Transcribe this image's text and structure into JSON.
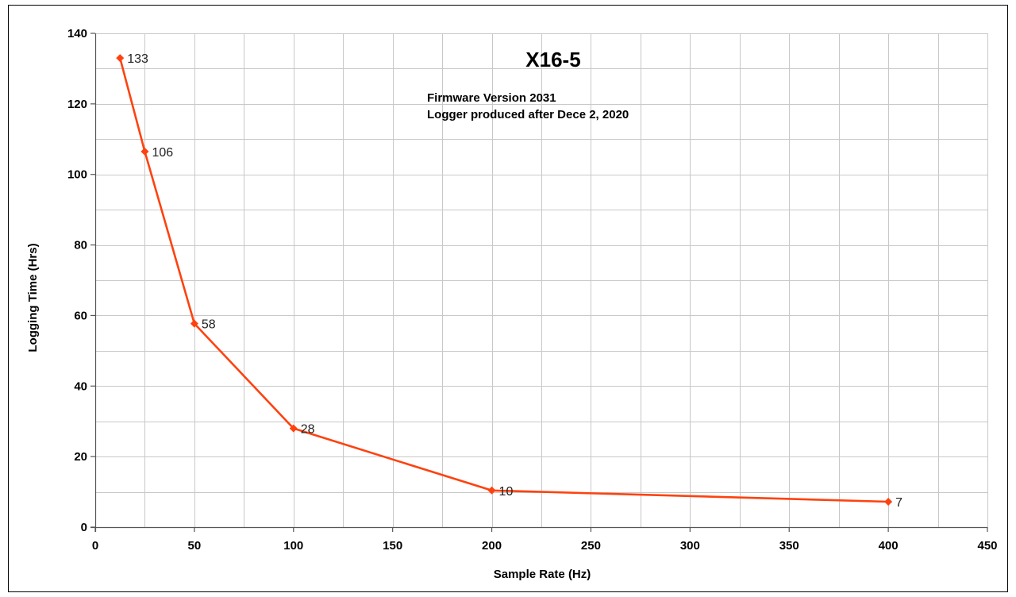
{
  "chart_data": {
    "type": "line",
    "title": "X16-5",
    "annotations": [
      "Firmware Version 2031",
      "Logger produced after Dece 2, 2020"
    ],
    "xlabel": "Sample Rate (Hz)",
    "ylabel": "Logging Time (Hrs)",
    "xlim": [
      0,
      450
    ],
    "ylim": [
      0,
      140
    ],
    "x_ticks": [
      0,
      50,
      100,
      150,
      200,
      250,
      300,
      350,
      400,
      450
    ],
    "y_ticks": [
      0,
      20,
      40,
      60,
      80,
      100,
      120,
      140
    ],
    "x_minor_step": 25,
    "y_minor_step": 10,
    "grid": true,
    "series": [
      {
        "x": [
          12.5,
          25,
          50,
          100,
          200,
          400
        ],
        "y": [
          133,
          106.5,
          57.7,
          28,
          10.4,
          7.2
        ],
        "labels": [
          "133",
          "106",
          "58",
          "28",
          "10",
          "7"
        ],
        "color": "#fe420f",
        "marker": "diamond"
      }
    ]
  }
}
